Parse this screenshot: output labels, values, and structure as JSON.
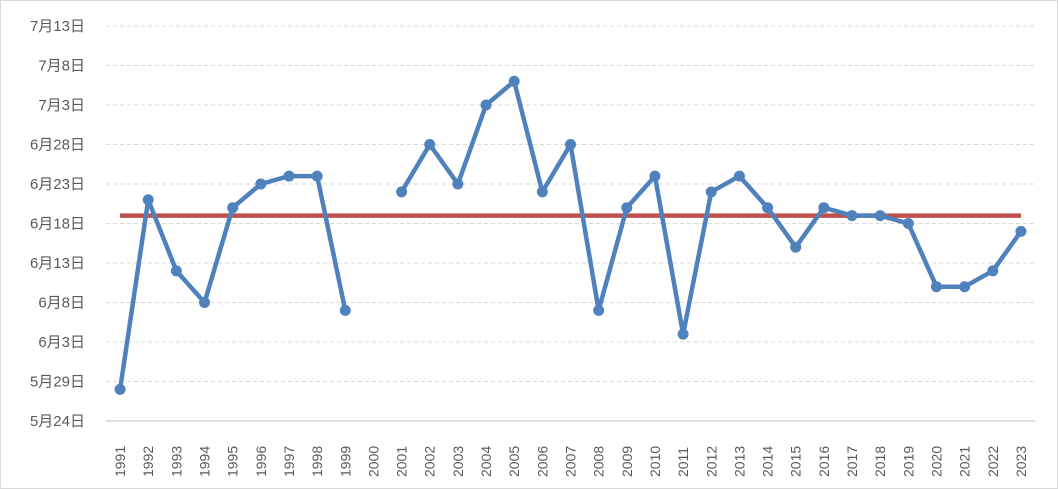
{
  "chart_data": {
    "type": "line",
    "title": "",
    "xlabel": "",
    "ylabel": "",
    "grid": true,
    "legend": "none",
    "colors": {
      "series": "#4f81bd",
      "reference": "#c0504d",
      "grid": "#d9d9d9",
      "text": "#595959"
    },
    "y_ticks": [
      "5月24日",
      "5月29日",
      "6月3日",
      "6月8日",
      "6月13日",
      "6月18日",
      "6月23日",
      "6月28日",
      "7月3日",
      "7月8日",
      "7月13日"
    ],
    "y_tick_dates": [
      "05-24",
      "05-29",
      "06-03",
      "06-08",
      "06-13",
      "06-18",
      "06-23",
      "06-28",
      "07-03",
      "07-08",
      "07-13"
    ],
    "ylim": [
      "05-24",
      "07-13"
    ],
    "categories": [
      "1991",
      "1992",
      "1993",
      "1994",
      "1995",
      "1996",
      "1997",
      "1998",
      "1999",
      "2000",
      "2001",
      "2002",
      "2003",
      "2004",
      "2005",
      "2006",
      "2007",
      "2008",
      "2009",
      "2010",
      "2011",
      "2012",
      "2013",
      "2014",
      "2015",
      "2016",
      "2017",
      "2018",
      "2019",
      "2020",
      "2021",
      "2022",
      "2023"
    ],
    "series": [
      {
        "values": [
          "05-28",
          "06-21",
          "06-12",
          "06-08",
          "06-20",
          "06-23",
          "06-24",
          "06-24",
          "06-07",
          null,
          "06-22",
          "06-28",
          "06-23",
          "07-03",
          "07-06",
          "06-22",
          "06-28",
          "06-07",
          "06-20",
          "06-24",
          "06-04",
          "06-22",
          "06-24",
          "06-20",
          "06-15",
          "06-20",
          "06-19",
          "06-19",
          "06-18",
          "06-10",
          "06-10",
          "06-12",
          "06-17"
        ]
      }
    ],
    "reference_line": {
      "value": "06-19"
    }
  }
}
